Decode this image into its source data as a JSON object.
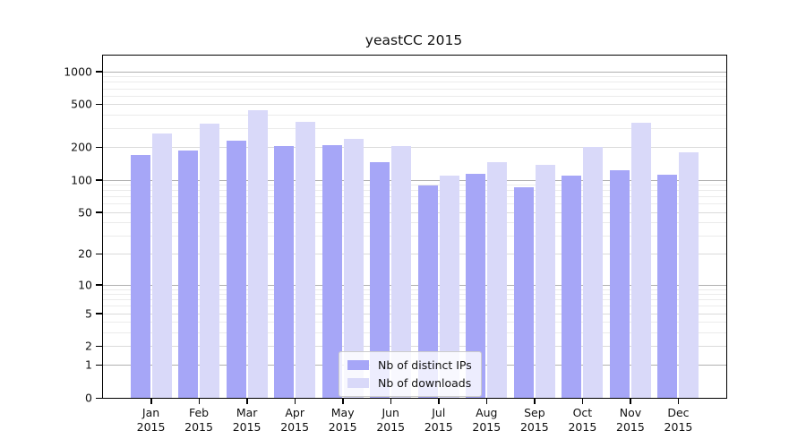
{
  "title": "yeastCC 2015",
  "colors": {
    "ips": "#a6a6f7",
    "downloads": "#d9d9f9",
    "grid_major": "#b0b0b0",
    "grid_mid": "#dbdbdb",
    "grid_minor": "#ebebeb",
    "axis": "#000000"
  },
  "legend": {
    "items": [
      {
        "key": "ips",
        "label": "Nb of distinct IPs"
      },
      {
        "key": "downloads",
        "label": "Nb of downloads"
      }
    ]
  },
  "chart_data": {
    "type": "bar",
    "title": "yeastCC 2015",
    "x_categories": [
      "Jan",
      "Feb",
      "Mar",
      "Apr",
      "May",
      "Jun",
      "Jul",
      "Aug",
      "Sep",
      "Oct",
      "Nov",
      "Dec"
    ],
    "x_year": "2015",
    "series": [
      {
        "name": "Nb of distinct IPs",
        "values": [
          170,
          188,
          232,
          204,
          209,
          147,
          89,
          113,
          86,
          110,
          122,
          112
        ]
      },
      {
        "name": "Nb of downloads",
        "values": [
          270,
          330,
          443,
          342,
          240,
          205,
          110,
          145,
          138,
          201,
          334,
          179
        ]
      }
    ],
    "y_scale": "log10(value+1)",
    "y_ticks": [
      0,
      1,
      2,
      5,
      10,
      20,
      50,
      100,
      200,
      500,
      1000
    ],
    "y_major_ticks": [
      1,
      10,
      100,
      1000
    ],
    "ylim": [
      0,
      1400
    ],
    "grid": true,
    "legend_position": "lower center"
  }
}
